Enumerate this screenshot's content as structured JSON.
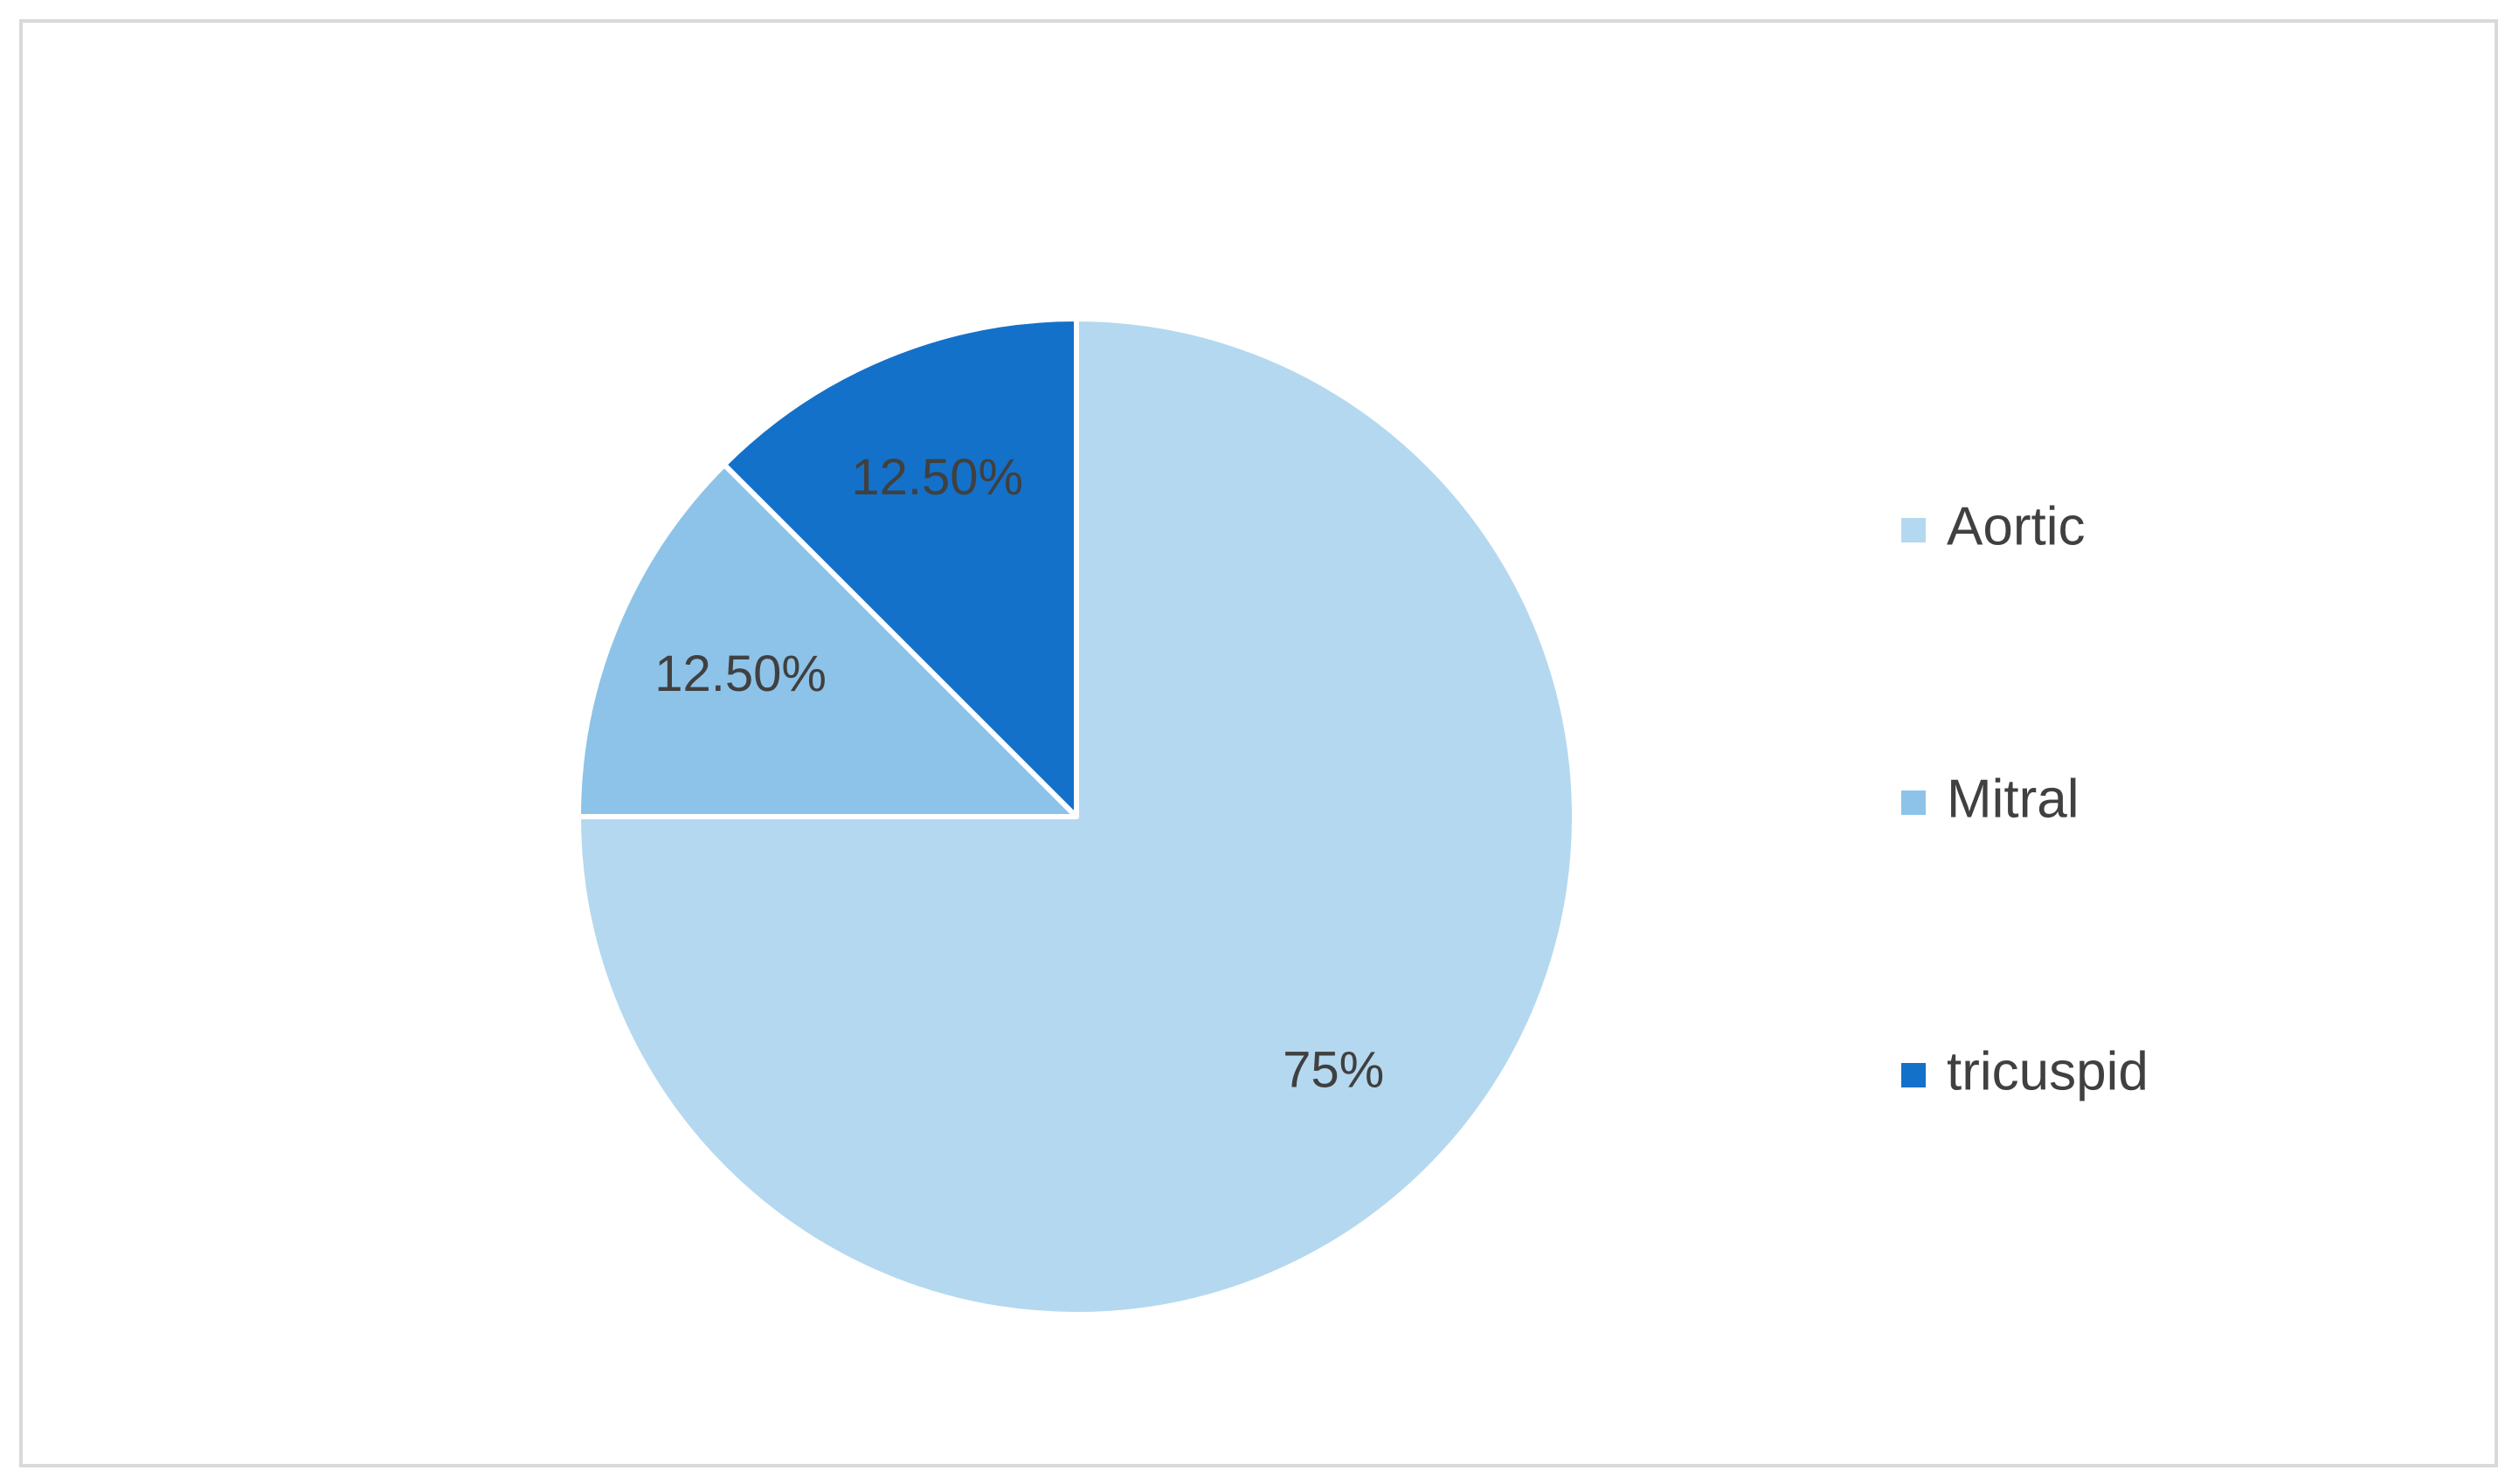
{
  "chart_data": {
    "type": "pie",
    "categories": [
      "Aortic",
      "Mitral",
      "tricuspid"
    ],
    "values": [
      75,
      12.5,
      12.5
    ],
    "value_labels": [
      "75%",
      "12.50%",
      "12.50%"
    ],
    "colors": [
      "#b4d8ef",
      "#8dc3e8",
      "#1471c9"
    ],
    "legend": "right"
  }
}
